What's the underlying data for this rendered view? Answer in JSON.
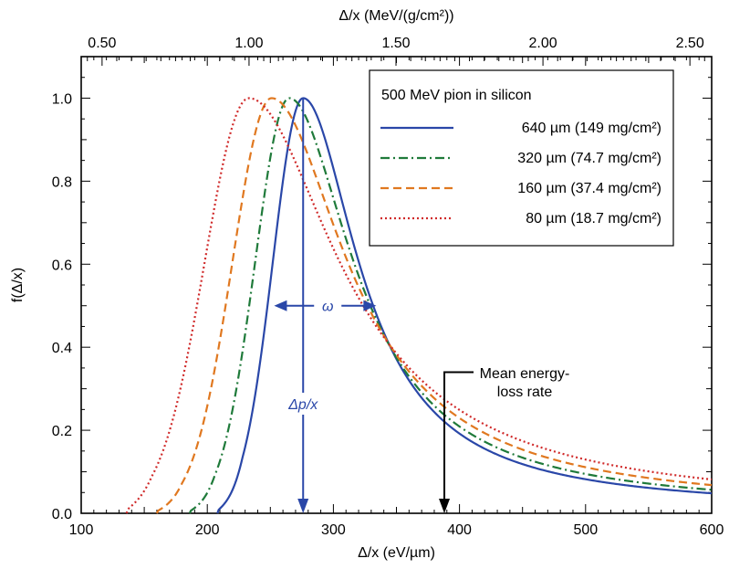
{
  "chart_data": {
    "type": "line",
    "xlabel": "Δ/x  (eV/µm)",
    "xlabel_top": "Δ/x (MeV/(g/cm²))",
    "ylabel": "f(Δ/x)",
    "xlim": [
      100,
      600
    ],
    "ylim": [
      0,
      1.1
    ],
    "x_ticks": [
      100,
      200,
      300,
      400,
      500,
      600
    ],
    "y_ticks": [
      0.0,
      0.2,
      0.4,
      0.6,
      0.8,
      1.0
    ],
    "x_tick_labels": [
      "100",
      "200",
      "300",
      "400",
      "500",
      "600"
    ],
    "y_tick_labels": [
      "0.0",
      "0.2",
      "0.4",
      "0.6",
      "0.8",
      "1.0"
    ],
    "top_ticks": [
      0.5,
      1.0,
      1.5,
      2.0,
      2.5
    ],
    "top_tick_labels": [
      "0.50",
      "1.00",
      "1.50",
      "2.00",
      "2.50"
    ],
    "top_scale_factor": 233.1,
    "legend_title": "500 MeV pion in silicon",
    "legend_position": "top-right",
    "series": [
      {
        "name": "640 µm (149 mg/cm²)",
        "color": "#2a47a8",
        "dash": "solid",
        "mpv": 276,
        "left_sigma": 24,
        "right_scale": 38,
        "x": [
          208,
          220,
          230,
          240,
          250,
          260,
          268,
          276,
          290,
          300,
          320,
          340,
          360,
          380,
          400,
          420,
          450,
          500,
          550,
          600
        ],
        "values": [
          0.0,
          0.05,
          0.15,
          0.32,
          0.56,
          0.81,
          0.95,
          1.0,
          0.93,
          0.84,
          0.64,
          0.47,
          0.35,
          0.26,
          0.2,
          0.16,
          0.12,
          0.08,
          0.055,
          0.04
        ]
      },
      {
        "name": "320 µm (74.7 mg/cm²)",
        "color": "#1f7a3a",
        "dash": "dashdot",
        "mpv": 265,
        "left_sigma": 27,
        "right_scale": 44,
        "x": [
          186,
          200,
          210,
          220,
          230,
          240,
          250,
          258,
          265,
          280,
          300,
          320,
          340,
          360,
          380,
          400,
          450,
          500,
          550,
          600
        ],
        "values": [
          0.0,
          0.05,
          0.13,
          0.27,
          0.47,
          0.69,
          0.88,
          0.97,
          1.0,
          0.93,
          0.77,
          0.58,
          0.44,
          0.33,
          0.25,
          0.2,
          0.12,
          0.075,
          0.05,
          0.035
        ]
      },
      {
        "name": "160 µm (37.4 mg/cm²)",
        "color": "#e07820",
        "dash": "dashed",
        "mpv": 251,
        "left_sigma": 31,
        "right_scale": 52,
        "x": [
          160,
          180,
          190,
          200,
          210,
          220,
          230,
          240,
          251,
          265,
          280,
          300,
          320,
          340,
          360,
          380,
          400,
          450,
          500,
          600
        ],
        "values": [
          0.0,
          0.06,
          0.15,
          0.27,
          0.43,
          0.62,
          0.8,
          0.94,
          1.0,
          0.94,
          0.82,
          0.62,
          0.47,
          0.36,
          0.28,
          0.22,
          0.18,
          0.11,
          0.07,
          0.035
        ]
      },
      {
        "name": "80 µm (18.7 mg/cm²)",
        "color": "#d02a2a",
        "dash": "dotted",
        "mpv": 233,
        "left_sigma": 35,
        "right_scale": 62,
        "x": [
          136,
          150,
          160,
          170,
          180,
          190,
          200,
          210,
          220,
          233,
          250,
          270,
          290,
          310,
          330,
          350,
          380,
          400,
          450,
          500,
          600
        ],
        "values": [
          0.0,
          0.04,
          0.09,
          0.16,
          0.27,
          0.41,
          0.57,
          0.74,
          0.9,
          1.0,
          0.95,
          0.81,
          0.64,
          0.5,
          0.4,
          0.32,
          0.24,
          0.19,
          0.12,
          0.08,
          0.035
        ]
      }
    ],
    "annotations": {
      "omega_label": "ω",
      "omega_x1": 253,
      "omega_x2": 334,
      "omega_y": 0.5,
      "mpv_label": "Δp/x",
      "mpv_x": 276,
      "mean_label_line1": "Mean energy-",
      "mean_label_line2": "loss rate",
      "mean_x": 388
    },
    "annotation_color": "#2a47a8"
  }
}
